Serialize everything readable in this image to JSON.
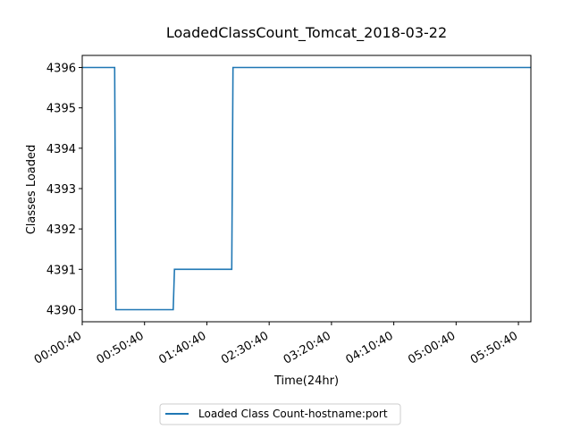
{
  "chart_data": {
    "type": "line",
    "title": "LoadedClassCount_Tomcat_2018-03-22",
    "xlabel": "Time(24hr)",
    "ylabel": "Classes Loaded",
    "x_tick_labels": [
      "00:00:40",
      "00:50:40",
      "01:40:40",
      "02:30:40",
      "03:20:40",
      "04:10:40",
      "05:00:40",
      "05:50:40"
    ],
    "y_ticks": [
      4390,
      4391,
      4392,
      4393,
      4394,
      4395,
      4396
    ],
    "xlim": [
      "00:00:40",
      "06:00:40"
    ],
    "ylim": [
      4389.7,
      4396.3
    ],
    "grid": false,
    "legend_position": "bottom-center",
    "series": [
      {
        "name": "Loaded Class Count-hostname:port",
        "color": "#1f77b4",
        "x": [
          "00:00:40",
          "00:26:40",
          "00:27:40",
          "01:13:40",
          "01:14:40",
          "02:00:40",
          "02:01:40",
          "06:00:40"
        ],
        "values": [
          4396,
          4396,
          4390,
          4390,
          4391,
          4391,
          4396,
          4396
        ]
      }
    ]
  }
}
